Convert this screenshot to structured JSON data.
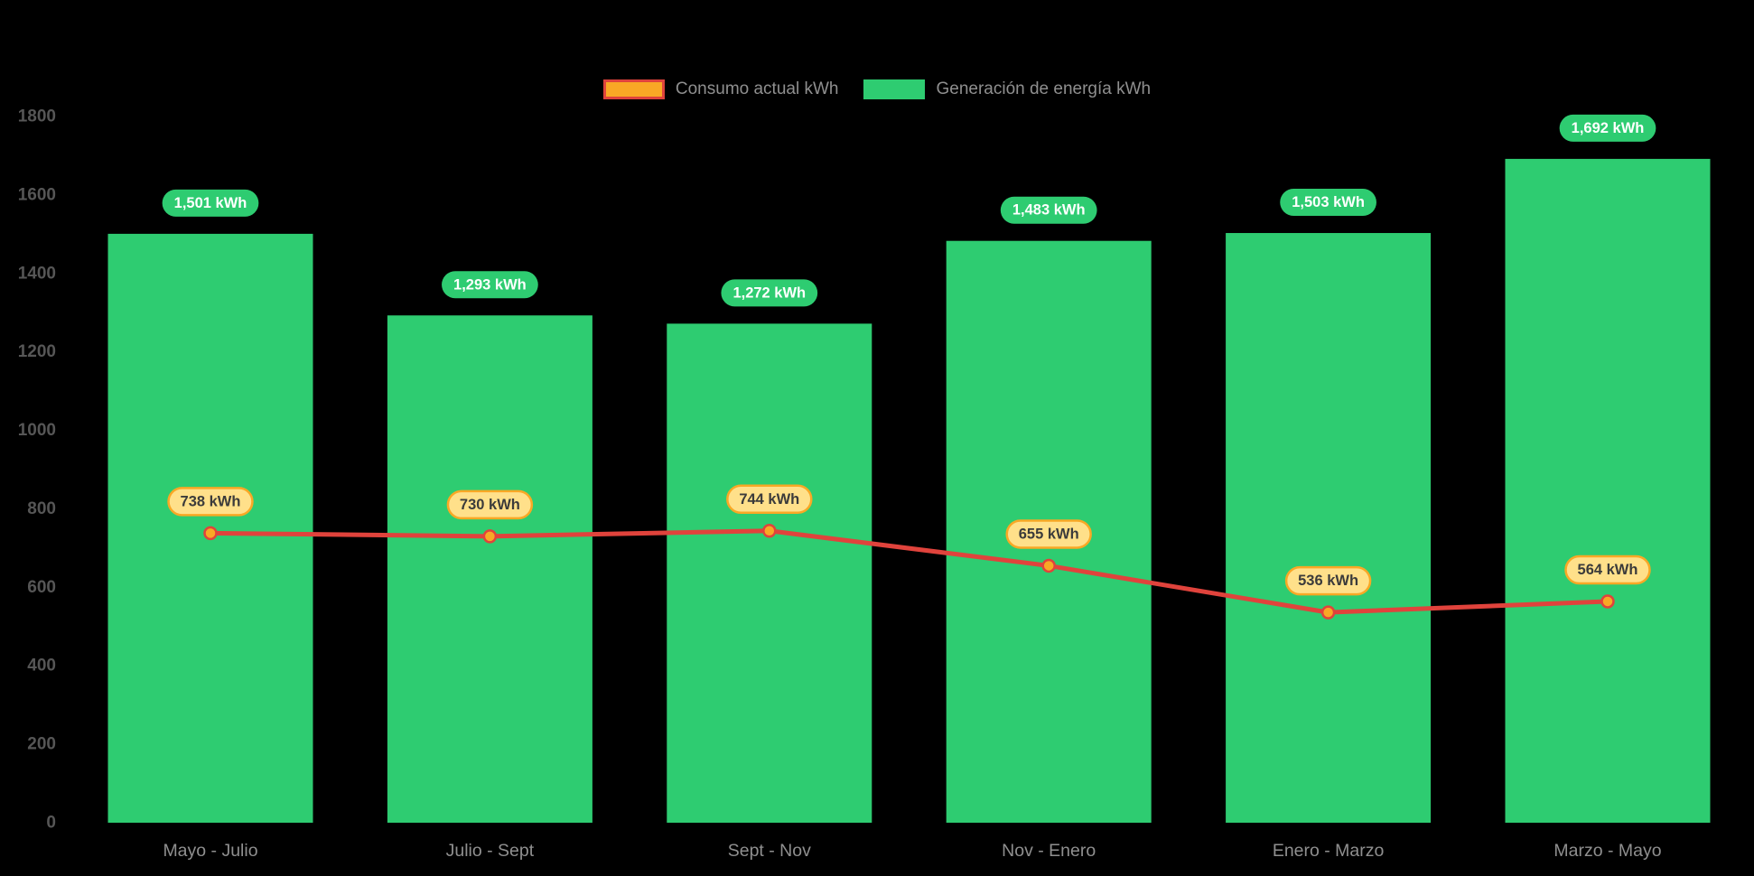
{
  "chart_data": {
    "type": "bar",
    "subtype": "bar-with-line-overlay",
    "categories": [
      "Mayo - Julio",
      "Julio - Sept",
      "Sept - Nov",
      "Nov - Enero",
      "Enero - Marzo",
      "Marzo - Mayo"
    ],
    "series": [
      {
        "name": "Consumo actual kWh",
        "type": "line",
        "values": [
          738,
          730,
          744,
          655,
          536,
          564
        ],
        "labels": [
          "738 kWh",
          "730 kWh",
          "744 kWh",
          "655 kWh",
          "536 kWh",
          "564 kWh"
        ]
      },
      {
        "name": "Generación de energía kWh",
        "type": "bar",
        "values": [
          1501,
          1293,
          1272,
          1483,
          1503,
          1692
        ],
        "labels": [
          "1,501 kWh",
          "1,293 kWh",
          "1,272 kWh",
          "1,483 kWh",
          "1,503 kWh",
          "1,692 kWh"
        ]
      }
    ],
    "title": "",
    "xlabel": "",
    "ylabel": "",
    "ylim": [
      0,
      1800
    ],
    "yticks": [
      0,
      200,
      400,
      600,
      800,
      1000,
      1200,
      1400,
      1600,
      1800
    ],
    "grid": false,
    "legend_position": "top",
    "colors": {
      "background": "#000000",
      "bar": "#2ecc71",
      "bar_label_bg": "#2ecc71",
      "bar_label_text": "#ffffff",
      "line": "#e0433c",
      "point_fill": "#f9a825",
      "point_border": "#e0433c",
      "line_label_bg": "#ffe08a",
      "line_label_border": "#f9a825",
      "line_label_text": "#3b3b3b",
      "axis_text": "#565656",
      "category_text": "#8f8f8f",
      "legend_text": "#8f8f8f"
    }
  }
}
